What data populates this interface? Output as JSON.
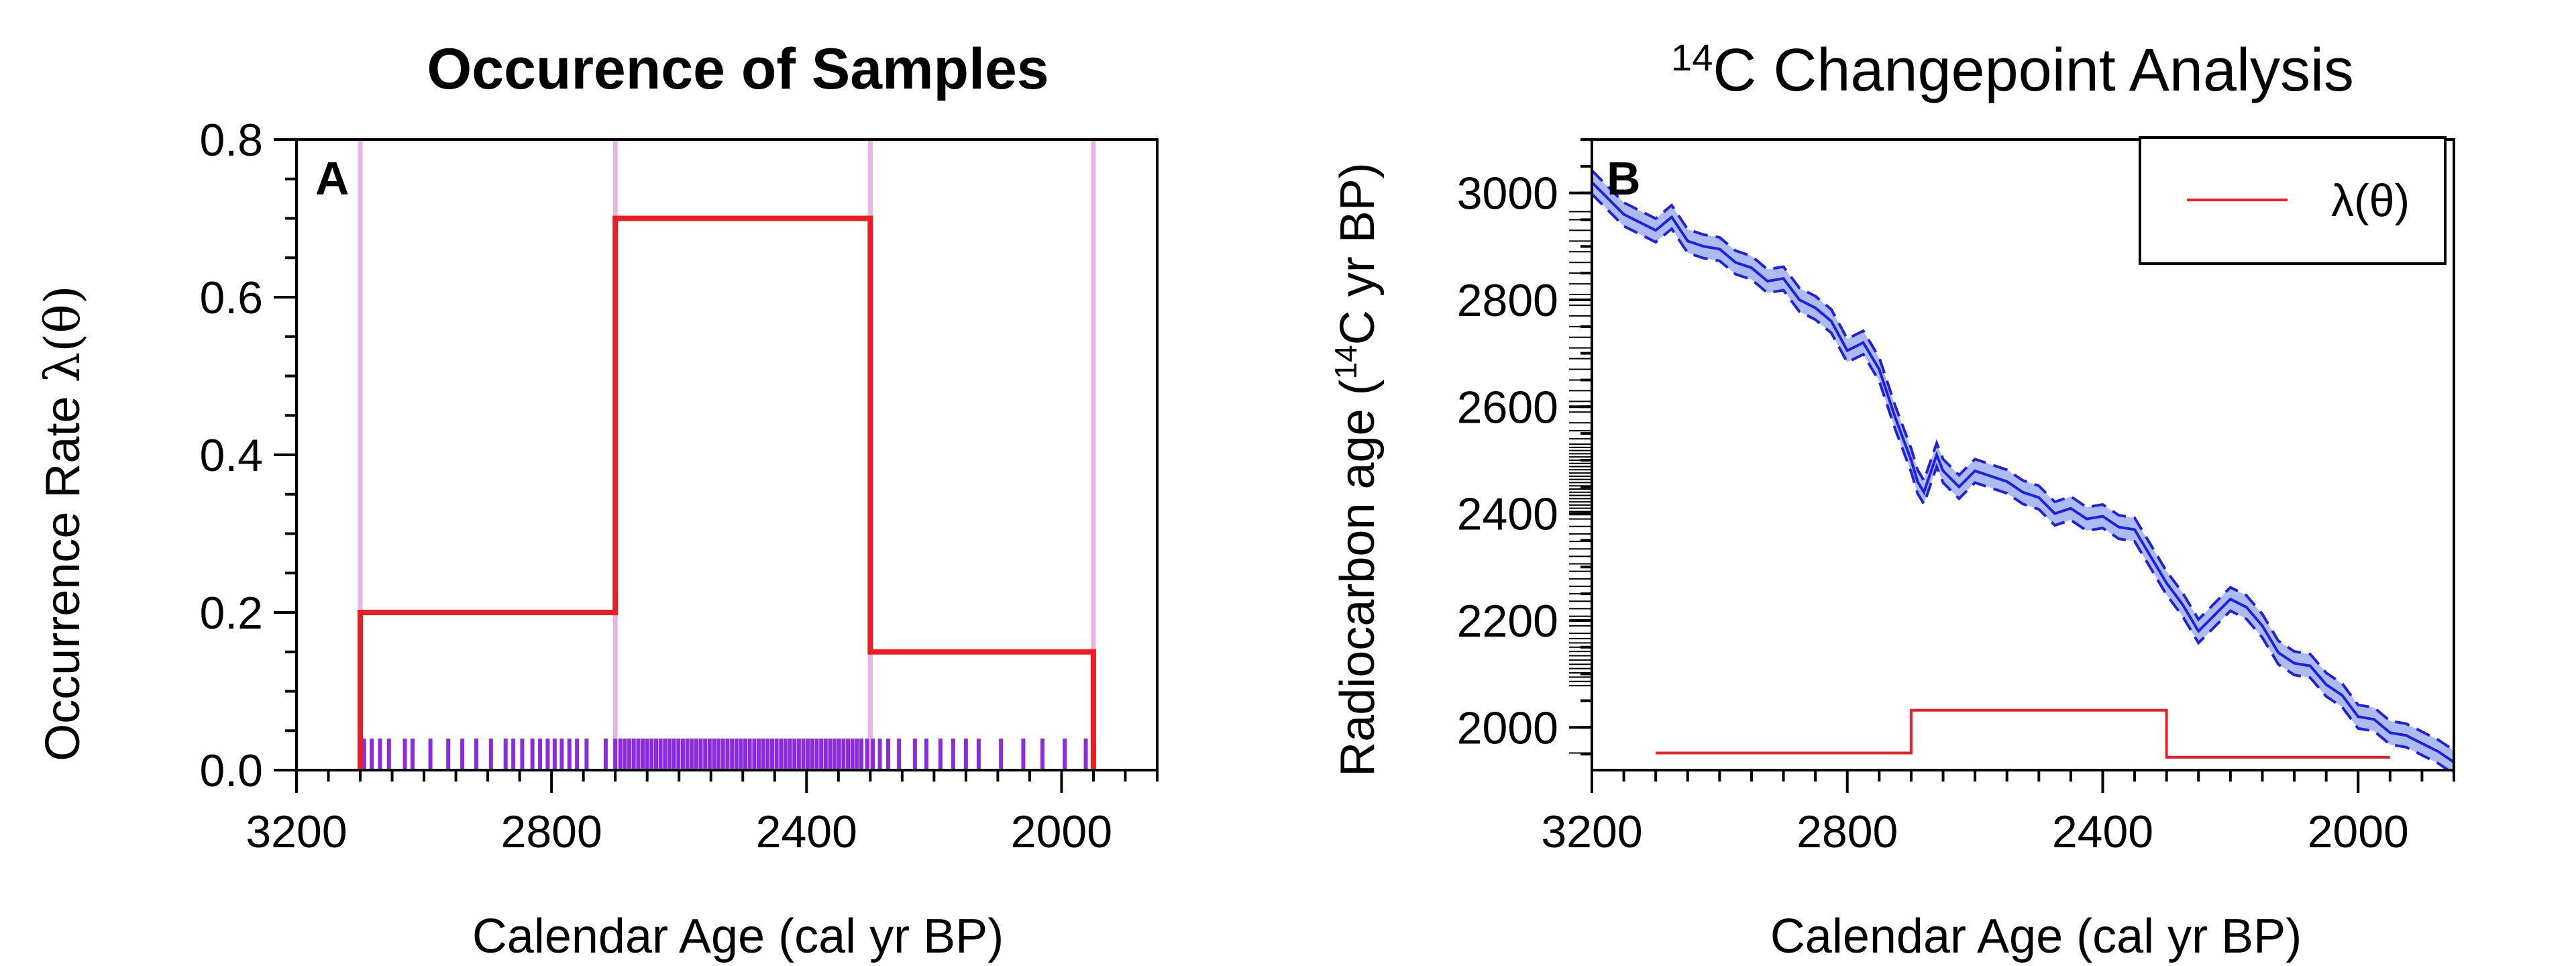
{
  "chart_data": [
    {
      "type": "line",
      "panel_letter": "A",
      "title": "Occurence of Samples",
      "xlabel": "Calendar Age (cal yr BP)",
      "ylabel_prefix": "Occurrence Rate ",
      "ylabel_symbol": "λ(θ)",
      "x_reversed": true,
      "xlim": [
        3200,
        1850
      ],
      "ylim": [
        0,
        0.8
      ],
      "x_ticks": [
        "3200",
        "2800",
        "2400",
        "2000"
      ],
      "x_tick_values": [
        3200,
        2800,
        2400,
        2000
      ],
      "y_ticks": [
        "0.0",
        "0.2",
        "0.4",
        "0.6",
        "0.8"
      ],
      "y_tick_values": [
        0,
        0.2,
        0.4,
        0.6,
        0.8
      ],
      "changepoints": [
        3100,
        2700,
        2300,
        1950
      ],
      "rate_segments": [
        {
          "x0": 3100,
          "x1": 2700,
          "rate": 0.2
        },
        {
          "x0": 2700,
          "x1": 2300,
          "rate": 0.7
        },
        {
          "x0": 2300,
          "x1": 1950,
          "rate": 0.15
        }
      ],
      "sample_ages": [
        3094,
        3082,
        3069,
        3055,
        3030,
        3018,
        2990,
        2962,
        2940,
        2918,
        2895,
        2872,
        2860,
        2846,
        2830,
        2818,
        2806,
        2795,
        2784,
        2772,
        2760,
        2745,
        2715,
        2700,
        2692,
        2685,
        2678,
        2671,
        2664,
        2657,
        2650,
        2643,
        2636,
        2629,
        2622,
        2615,
        2608,
        2601,
        2594,
        2587,
        2580,
        2573,
        2566,
        2559,
        2552,
        2545,
        2538,
        2531,
        2524,
        2517,
        2510,
        2503,
        2496,
        2489,
        2482,
        2475,
        2468,
        2461,
        2454,
        2447,
        2440,
        2433,
        2426,
        2419,
        2412,
        2405,
        2398,
        2391,
        2384,
        2377,
        2370,
        2363,
        2356,
        2349,
        2342,
        2335,
        2328,
        2321,
        2314,
        2305,
        2296,
        2285,
        2272,
        2255,
        2230,
        2212,
        2190,
        2170,
        2150,
        2130,
        2095,
        2060,
        2030,
        1995,
        1962
      ],
      "sample_tick_height": 0.04,
      "colors": {
        "rate": "#ee1c25",
        "changepoint": "#e8b4e0",
        "samples": "#8a2be2"
      }
    },
    {
      "type": "line",
      "panel_letter": "B",
      "title_superscript": "14",
      "title_main": "C Changepoint Analysis",
      "xlabel": "Calendar Age (cal yr BP)",
      "ylabel_before": "Radiocarbon age (",
      "ylabel_superscript": "14",
      "ylabel_after": "C yr BP)",
      "x_reversed": true,
      "xlim": [
        3200,
        1850
      ],
      "ylim": [
        1920,
        3100
      ],
      "x_ticks": [
        "3200",
        "2800",
        "2400",
        "2000"
      ],
      "x_tick_values": [
        3200,
        2800,
        2400,
        2000
      ],
      "y_ticks": [
        "2000",
        "2200",
        "2400",
        "2600",
        "2800",
        "3000"
      ],
      "y_tick_values": [
        2000,
        2200,
        2400,
        2600,
        2800,
        3000
      ],
      "legend_label": "λ(θ)",
      "legend_position": "top-right",
      "calibration_curve": {
        "x": [
          3200,
          3175,
          3150,
          3125,
          3100,
          3075,
          3050,
          3025,
          3000,
          2975,
          2950,
          2925,
          2900,
          2875,
          2850,
          2825,
          2800,
          2775,
          2750,
          2725,
          2700,
          2690,
          2680,
          2670,
          2660,
          2650,
          2625,
          2600,
          2575,
          2550,
          2525,
          2500,
          2475,
          2450,
          2425,
          2400,
          2375,
          2350,
          2325,
          2300,
          2275,
          2250,
          2225,
          2200,
          2175,
          2150,
          2125,
          2100,
          2075,
          2050,
          2025,
          2000,
          1975,
          1950,
          1925,
          1900,
          1875,
          1850
        ],
        "y": [
          3020,
          2990,
          2960,
          2945,
          2930,
          2955,
          2910,
          2900,
          2895,
          2870,
          2860,
          2835,
          2840,
          2800,
          2785,
          2760,
          2705,
          2720,
          2670,
          2580,
          2500,
          2460,
          2440,
          2475,
          2510,
          2480,
          2450,
          2480,
          2470,
          2460,
          2440,
          2430,
          2400,
          2410,
          2390,
          2395,
          2375,
          2370,
          2320,
          2270,
          2230,
          2180,
          2210,
          2240,
          2225,
          2190,
          2140,
          2120,
          2115,
          2080,
          2060,
          2020,
          2015,
          1990,
          1985,
          1970,
          1955,
          1935
        ],
        "band_width": 22
      },
      "sample_c14_ages": [
        1952,
        2078,
        2086,
        2094,
        2102,
        2110,
        2118,
        2126,
        2134,
        2142,
        2150,
        2158,
        2166,
        2176,
        2190,
        2208,
        2222,
        2236,
        2250,
        2264,
        2278,
        2292,
        2306,
        2320,
        2334,
        2348,
        2362,
        2376,
        2390,
        2398,
        2404,
        2410,
        2416,
        2422,
        2428,
        2434,
        2440,
        2446,
        2452,
        2458,
        2464,
        2470,
        2476,
        2482,
        2488,
        2494,
        2500,
        2506,
        2512,
        2518,
        2524,
        2530,
        2540,
        2555,
        2570,
        2590,
        2610,
        2630,
        2650,
        2670,
        2690,
        2710,
        2730,
        2750,
        2770,
        2790,
        2810,
        2830,
        2850,
        2870,
        2890,
        2910,
        2930,
        2950,
        2965
      ],
      "rate_segments": [
        {
          "x0": 3100,
          "x1": 2700,
          "value": 0.2
        },
        {
          "x0": 2700,
          "x1": 2300,
          "value": 0.7
        },
        {
          "x0": 2300,
          "x1": 1950,
          "value": 0.15
        }
      ],
      "colors": {
        "curve": "#2020e0",
        "band": "#9db0f0",
        "rate": "#ee1c25"
      }
    }
  ]
}
